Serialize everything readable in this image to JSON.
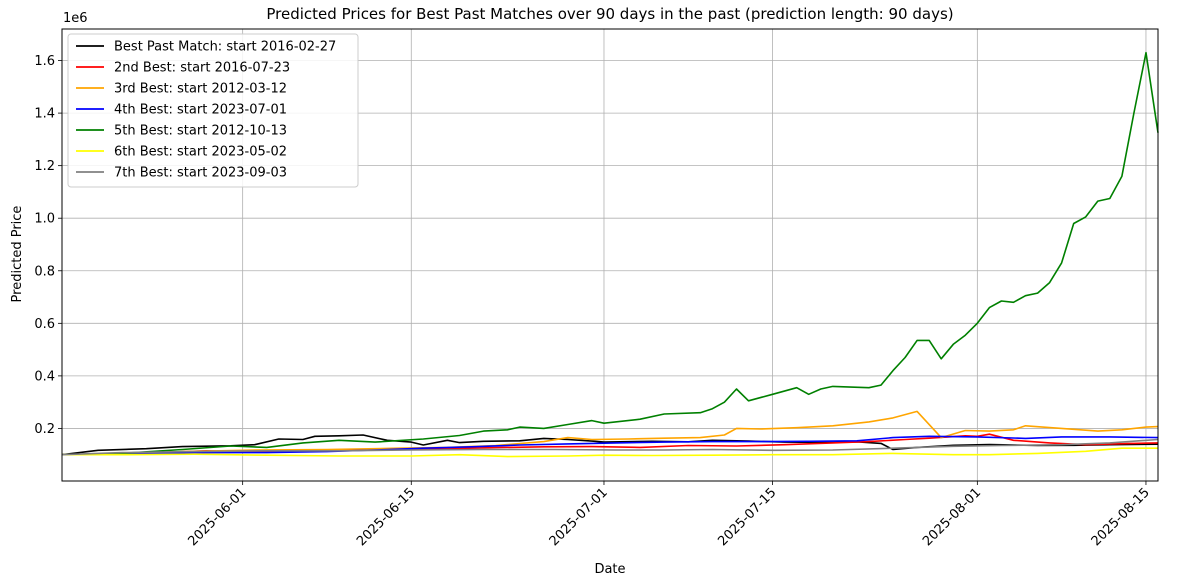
{
  "chart_data": {
    "type": "line",
    "title": "Predicted Prices for Best Past Matches over 90 days in the past (prediction length: 90 days)",
    "xlabel": "Date",
    "ylabel": "Predicted Price",
    "y_offset_label": "1e6",
    "ylim": [
      0,
      1.72
    ],
    "xlim": [
      "2025-05-17",
      "2025-08-16"
    ],
    "x_ticks": [
      "2025-06-01",
      "2025-06-15",
      "2025-07-01",
      "2025-07-15",
      "2025-08-01",
      "2025-08-15"
    ],
    "y_ticks": [
      0.2,
      0.4,
      0.6,
      0.8,
      1.0,
      1.2,
      1.4,
      1.6
    ],
    "y_tick_labels": [
      "0.2",
      "0.4",
      "0.6",
      "0.8",
      "1.0",
      "1.2",
      "1.4",
      "1.6"
    ],
    "grid": true,
    "legend_position": "top-left",
    "series": [
      {
        "name": "Best Past Match: start 2016-02-27",
        "color": "#000000",
        "points": [
          [
            "2025-05-17",
            0.1
          ],
          [
            "2025-05-20",
            0.117
          ],
          [
            "2025-05-24",
            0.123
          ],
          [
            "2025-05-27",
            0.131
          ],
          [
            "2025-05-31",
            0.134
          ],
          [
            "2025-06-02",
            0.138
          ],
          [
            "2025-06-04",
            0.16
          ],
          [
            "2025-06-06",
            0.158
          ],
          [
            "2025-06-07",
            0.17
          ],
          [
            "2025-06-09",
            0.172
          ],
          [
            "2025-06-11",
            0.175
          ],
          [
            "2025-06-13",
            0.155
          ],
          [
            "2025-06-15",
            0.148
          ],
          [
            "2025-06-16",
            0.137
          ],
          [
            "2025-06-18",
            0.155
          ],
          [
            "2025-06-19",
            0.146
          ],
          [
            "2025-06-21",
            0.151
          ],
          [
            "2025-06-24",
            0.153
          ],
          [
            "2025-06-26",
            0.162
          ],
          [
            "2025-06-28",
            0.158
          ],
          [
            "2025-06-30",
            0.152
          ],
          [
            "2025-07-01",
            0.148
          ],
          [
            "2025-07-05",
            0.151
          ],
          [
            "2025-07-08",
            0.149
          ],
          [
            "2025-07-10",
            0.155
          ],
          [
            "2025-07-13",
            0.152
          ],
          [
            "2025-07-16",
            0.148
          ],
          [
            "2025-07-20",
            0.147
          ],
          [
            "2025-07-22",
            0.149
          ],
          [
            "2025-07-24",
            0.143
          ],
          [
            "2025-07-25",
            0.12
          ],
          [
            "2025-07-27",
            0.128
          ],
          [
            "2025-07-30",
            0.136
          ],
          [
            "2025-08-02",
            0.139
          ],
          [
            "2025-08-06",
            0.135
          ],
          [
            "2025-08-09",
            0.136
          ],
          [
            "2025-08-12",
            0.138
          ],
          [
            "2025-08-16",
            0.14
          ]
        ]
      },
      {
        "name": "2nd Best: start 2016-07-23",
        "color": "#ff0000",
        "points": [
          [
            "2025-05-17",
            0.1
          ],
          [
            "2025-05-21",
            0.103
          ],
          [
            "2025-05-25",
            0.108
          ],
          [
            "2025-05-29",
            0.115
          ],
          [
            "2025-06-02",
            0.11
          ],
          [
            "2025-06-06",
            0.113
          ],
          [
            "2025-06-10",
            0.117
          ],
          [
            "2025-06-14",
            0.119
          ],
          [
            "2025-06-18",
            0.123
          ],
          [
            "2025-06-22",
            0.127
          ],
          [
            "2025-06-26",
            0.13
          ],
          [
            "2025-06-30",
            0.131
          ],
          [
            "2025-07-04",
            0.128
          ],
          [
            "2025-07-08",
            0.135
          ],
          [
            "2025-07-12",
            0.133
          ],
          [
            "2025-07-16",
            0.138
          ],
          [
            "2025-07-20",
            0.145
          ],
          [
            "2025-07-23",
            0.15
          ],
          [
            "2025-07-26",
            0.158
          ],
          [
            "2025-07-28",
            0.163
          ],
          [
            "2025-07-31",
            0.172
          ],
          [
            "2025-08-01",
            0.17
          ],
          [
            "2025-08-02",
            0.178
          ],
          [
            "2025-08-04",
            0.155
          ],
          [
            "2025-08-07",
            0.145
          ],
          [
            "2025-08-10",
            0.138
          ],
          [
            "2025-08-13",
            0.142
          ],
          [
            "2025-08-16",
            0.145
          ]
        ]
      },
      {
        "name": "3rd Best: start 2012-03-12",
        "color": "#ffa500",
        "points": [
          [
            "2025-05-17",
            0.1
          ],
          [
            "2025-05-22",
            0.105
          ],
          [
            "2025-05-28",
            0.113
          ],
          [
            "2025-06-02",
            0.118
          ],
          [
            "2025-06-08",
            0.12
          ],
          [
            "2025-06-14",
            0.125
          ],
          [
            "2025-06-18",
            0.128
          ],
          [
            "2025-06-22",
            0.135
          ],
          [
            "2025-06-26",
            0.15
          ],
          [
            "2025-06-28",
            0.165
          ],
          [
            "2025-06-30",
            0.158
          ],
          [
            "2025-07-03",
            0.16
          ],
          [
            "2025-07-06",
            0.163
          ],
          [
            "2025-07-09",
            0.165
          ],
          [
            "2025-07-11",
            0.175
          ],
          [
            "2025-07-12",
            0.2
          ],
          [
            "2025-07-14",
            0.198
          ],
          [
            "2025-07-17",
            0.203
          ],
          [
            "2025-07-20",
            0.21
          ],
          [
            "2025-07-23",
            0.225
          ],
          [
            "2025-07-25",
            0.24
          ],
          [
            "2025-07-27",
            0.265
          ],
          [
            "2025-07-29",
            0.165
          ],
          [
            "2025-07-31",
            0.192
          ],
          [
            "2025-08-02",
            0.19
          ],
          [
            "2025-08-04",
            0.195
          ],
          [
            "2025-08-05",
            0.21
          ],
          [
            "2025-08-08",
            0.2
          ],
          [
            "2025-08-11",
            0.19
          ],
          [
            "2025-08-13",
            0.195
          ],
          [
            "2025-08-15",
            0.205
          ],
          [
            "2025-08-16",
            0.207
          ]
        ]
      },
      {
        "name": "4th Best: start 2023-07-01",
        "color": "#0000ff",
        "points": [
          [
            "2025-05-17",
            0.1
          ],
          [
            "2025-05-22",
            0.105
          ],
          [
            "2025-05-28",
            0.108
          ],
          [
            "2025-06-03",
            0.108
          ],
          [
            "2025-06-08",
            0.112
          ],
          [
            "2025-06-12",
            0.118
          ],
          [
            "2025-06-16",
            0.125
          ],
          [
            "2025-06-20",
            0.13
          ],
          [
            "2025-06-24",
            0.137
          ],
          [
            "2025-06-28",
            0.141
          ],
          [
            "2025-07-02",
            0.145
          ],
          [
            "2025-07-06",
            0.148
          ],
          [
            "2025-07-10",
            0.15
          ],
          [
            "2025-07-14",
            0.15
          ],
          [
            "2025-07-18",
            0.151
          ],
          [
            "2025-07-22",
            0.153
          ],
          [
            "2025-07-25",
            0.165
          ],
          [
            "2025-07-28",
            0.17
          ],
          [
            "2025-08-01",
            0.168
          ],
          [
            "2025-08-05",
            0.162
          ],
          [
            "2025-08-08",
            0.168
          ],
          [
            "2025-08-12",
            0.168
          ],
          [
            "2025-08-16",
            0.165
          ]
        ]
      },
      {
        "name": "5th Best: start 2012-10-13",
        "color": "#008000",
        "points": [
          [
            "2025-05-17",
            0.1
          ],
          [
            "2025-05-22",
            0.105
          ],
          [
            "2025-05-27",
            0.12
          ],
          [
            "2025-05-31",
            0.133
          ],
          [
            "2025-06-03",
            0.128
          ],
          [
            "2025-06-06",
            0.145
          ],
          [
            "2025-06-09",
            0.155
          ],
          [
            "2025-06-12",
            0.148
          ],
          [
            "2025-06-16",
            0.16
          ],
          [
            "2025-06-19",
            0.173
          ],
          [
            "2025-06-21",
            0.19
          ],
          [
            "2025-06-23",
            0.195
          ],
          [
            "2025-06-24",
            0.205
          ],
          [
            "2025-06-26",
            0.2
          ],
          [
            "2025-06-28",
            0.215
          ],
          [
            "2025-06-30",
            0.23
          ],
          [
            "2025-07-01",
            0.22
          ],
          [
            "2025-07-04",
            0.235
          ],
          [
            "2025-07-06",
            0.255
          ],
          [
            "2025-07-09",
            0.26
          ],
          [
            "2025-07-10",
            0.275
          ],
          [
            "2025-07-11",
            0.3
          ],
          [
            "2025-07-12",
            0.35
          ],
          [
            "2025-07-13",
            0.305
          ],
          [
            "2025-07-15",
            0.33
          ],
          [
            "2025-07-17",
            0.355
          ],
          [
            "2025-07-18",
            0.33
          ],
          [
            "2025-07-19",
            0.35
          ],
          [
            "2025-07-20",
            0.36
          ],
          [
            "2025-07-23",
            0.355
          ],
          [
            "2025-07-24",
            0.365
          ],
          [
            "2025-07-25",
            0.42
          ],
          [
            "2025-07-26",
            0.47
          ],
          [
            "2025-07-27",
            0.535
          ],
          [
            "2025-07-28",
            0.535
          ],
          [
            "2025-07-29",
            0.465
          ],
          [
            "2025-07-30",
            0.52
          ],
          [
            "2025-07-31",
            0.555
          ],
          [
            "2025-08-01",
            0.6
          ],
          [
            "2025-08-02",
            0.66
          ],
          [
            "2025-08-03",
            0.685
          ],
          [
            "2025-08-04",
            0.68
          ],
          [
            "2025-08-05",
            0.705
          ],
          [
            "2025-08-06",
            0.715
          ],
          [
            "2025-08-07",
            0.755
          ],
          [
            "2025-08-08",
            0.83
          ],
          [
            "2025-08-09",
            0.98
          ],
          [
            "2025-08-10",
            1.005
          ],
          [
            "2025-08-11",
            1.065
          ],
          [
            "2025-08-12",
            1.075
          ],
          [
            "2025-08-13",
            1.16
          ],
          [
            "2025-08-14",
            1.4
          ],
          [
            "2025-08-15",
            1.63
          ],
          [
            "2025-08-16",
            1.325
          ]
        ]
      },
      {
        "name": "6th Best: start 2023-05-02",
        "color": "#ffff00",
        "points": [
          [
            "2025-05-17",
            0.1
          ],
          [
            "2025-05-22",
            0.1
          ],
          [
            "2025-05-28",
            0.102
          ],
          [
            "2025-06-03",
            0.098
          ],
          [
            "2025-06-09",
            0.095
          ],
          [
            "2025-06-15",
            0.095
          ],
          [
            "2025-06-19",
            0.1
          ],
          [
            "2025-06-23",
            0.093
          ],
          [
            "2025-06-28",
            0.095
          ],
          [
            "2025-07-01",
            0.098
          ],
          [
            "2025-07-05",
            0.097
          ],
          [
            "2025-07-10",
            0.098
          ],
          [
            "2025-07-15",
            0.1
          ],
          [
            "2025-07-20",
            0.1
          ],
          [
            "2025-07-25",
            0.105
          ],
          [
            "2025-07-30",
            0.1
          ],
          [
            "2025-08-02",
            0.1
          ],
          [
            "2025-08-06",
            0.105
          ],
          [
            "2025-08-10",
            0.113
          ],
          [
            "2025-08-13",
            0.125
          ],
          [
            "2025-08-16",
            0.125
          ]
        ]
      },
      {
        "name": "7th Best: start 2023-09-03",
        "color": "#808080",
        "points": [
          [
            "2025-05-17",
            0.1
          ],
          [
            "2025-05-22",
            0.108
          ],
          [
            "2025-05-28",
            0.112
          ],
          [
            "2025-06-03",
            0.115
          ],
          [
            "2025-06-09",
            0.115
          ],
          [
            "2025-06-15",
            0.118
          ],
          [
            "2025-06-21",
            0.12
          ],
          [
            "2025-06-27",
            0.12
          ],
          [
            "2025-07-02",
            0.118
          ],
          [
            "2025-07-06",
            0.118
          ],
          [
            "2025-07-10",
            0.12
          ],
          [
            "2025-07-15",
            0.117
          ],
          [
            "2025-07-20",
            0.118
          ],
          [
            "2025-07-25",
            0.125
          ],
          [
            "2025-07-30",
            0.132
          ],
          [
            "2025-08-03",
            0.135
          ],
          [
            "2025-08-08",
            0.138
          ],
          [
            "2025-08-12",
            0.145
          ],
          [
            "2025-08-16",
            0.158
          ]
        ]
      }
    ]
  }
}
